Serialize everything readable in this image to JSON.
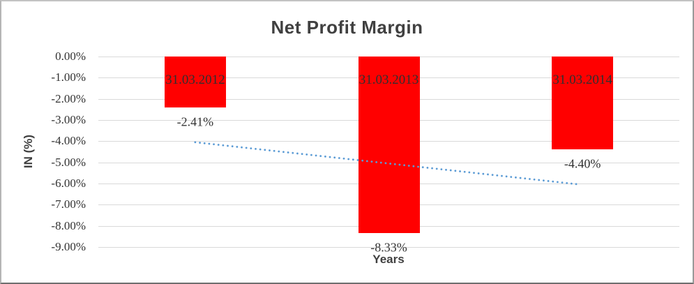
{
  "chart_data": {
    "type": "bar",
    "title": "Net Profit Margin",
    "xlabel": "Years",
    "ylabel": "IN (%)",
    "categories": [
      "31.03.2012",
      "31.03.2013",
      "31.03.2014"
    ],
    "values": [
      -2.41,
      -8.33,
      -4.4
    ],
    "data_labels": [
      "-2.41%",
      "-8.33%",
      "-4.40%"
    ],
    "y_ticks": [
      "0.00%",
      "-1.00%",
      "-2.00%",
      "-3.00%",
      "-4.00%",
      "-5.00%",
      "-6.00%",
      "-7.00%",
      "-8.00%",
      "-9.00%"
    ],
    "y_tick_values": [
      0,
      -1,
      -2,
      -3,
      -4,
      -5,
      -6,
      -7,
      -8,
      -9
    ],
    "ylim": [
      -9,
      0
    ],
    "grid": true,
    "legend": "none",
    "bar_color": "#FF0000",
    "category_label_position": "inside-top",
    "data_label_position": "outside-end",
    "gridline_color": "#D9D9D9",
    "title_color": "#404040",
    "tick_label_color": "#333333",
    "trendline": {
      "type": "linear",
      "style": "dotted",
      "color": "#5B9BD5",
      "start_value": -4.05,
      "end_value": -6.05
    }
  }
}
